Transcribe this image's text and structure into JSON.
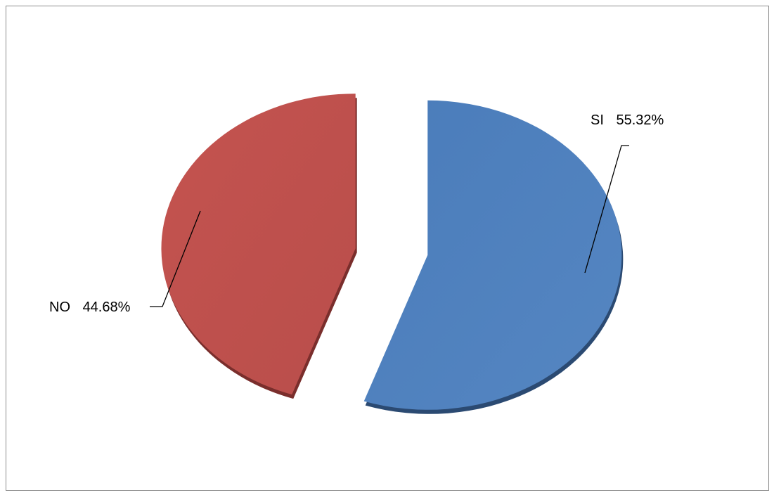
{
  "chart_data": {
    "type": "pie",
    "exploded": true,
    "three_d": true,
    "slices": [
      {
        "label": "SI",
        "value": 55.32,
        "value_text": "55.32%",
        "color": "#4f81bd",
        "shadow_color": "#2b4a72"
      },
      {
        "label": "NO",
        "value": 44.68,
        "value_text": "44.68%",
        "color": "#c0504d",
        "shadow_color": "#7a2e2c"
      }
    ],
    "title": "",
    "legend": "none",
    "grid": false
  }
}
